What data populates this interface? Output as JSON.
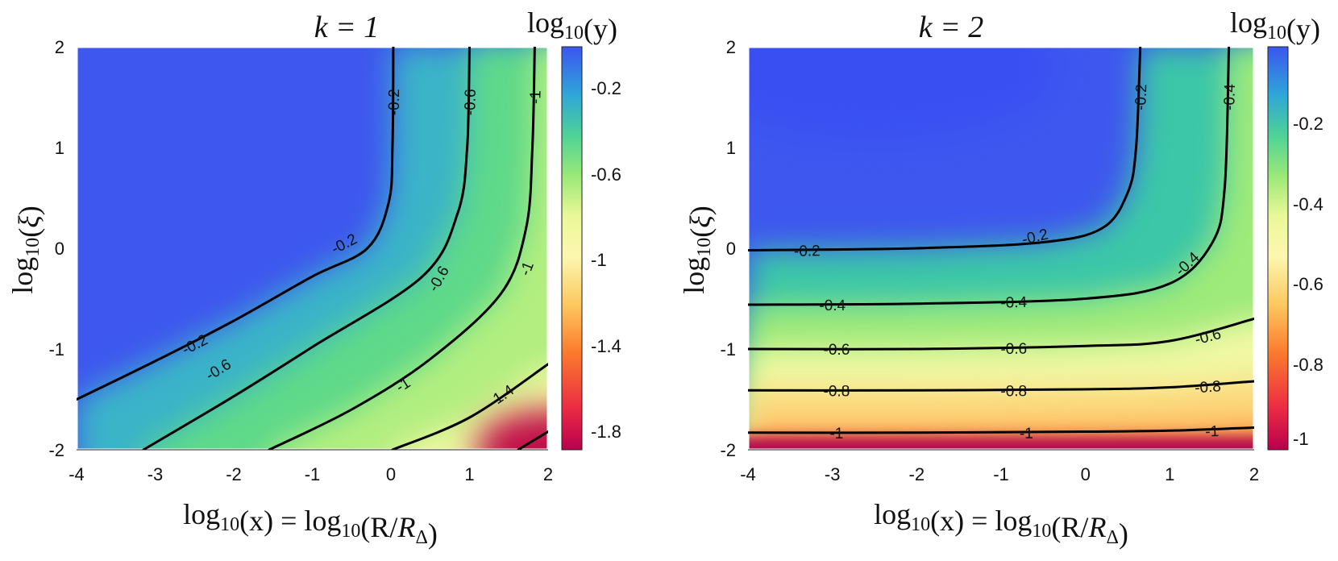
{
  "chart_data": [
    {
      "type": "heatmap",
      "title": "k = 1",
      "xlabel": "log10(x) = log10(R/RΔ)",
      "ylabel": "log10(ξ)",
      "colorbar_title": "log10(y)",
      "xlim": [
        -4,
        2
      ],
      "ylim": [
        -2,
        2
      ],
      "x_ticks": [
        "-4",
        "-3",
        "-2",
        "-1",
        "0",
        "1",
        "2"
      ],
      "y_ticks": [
        "-2",
        "-1",
        "0",
        "1",
        "2"
      ],
      "color_range": [
        -1.9,
        -0.05
      ],
      "colorbar_ticks": [
        "-0.2",
        "-0.6",
        "-1",
        "-1.4",
        "-1.8"
      ],
      "contours": [
        {
          "level": -0.2,
          "label": "-0.2",
          "points": [
            [
              -4,
              -1.5
            ],
            [
              -3,
              -1.12
            ],
            [
              -2,
              -0.72
            ],
            [
              -1,
              -0.28
            ],
            [
              -0.3,
              0.0
            ],
            [
              -0.03,
              0.45
            ],
            [
              0.02,
              1.0
            ],
            [
              0.03,
              2.0
            ]
          ],
          "label_at": [
            [
              -0.6,
              0.05
            ],
            [
              -2.5,
              -0.95
            ],
            [
              0.03,
              1.45
            ]
          ]
        },
        {
          "level": -0.6,
          "label": "-0.6",
          "points": [
            [
              -3.15,
              -2.0
            ],
            [
              -2,
              -1.47
            ],
            [
              -1,
              -0.98
            ],
            [
              0.4,
              -0.28
            ],
            [
              0.85,
              0.35
            ],
            [
              0.97,
              1.0
            ],
            [
              1.0,
              2.0
            ]
          ],
          "label_at": [
            [
              -2.2,
              -1.2
            ],
            [
              0.6,
              -0.3
            ],
            [
              1.0,
              1.45
            ]
          ]
        },
        {
          "level": -1,
          "label": "-1",
          "points": [
            [
              -1.55,
              -2.0
            ],
            [
              -0.5,
              -1.6
            ],
            [
              0.5,
              -1.1
            ],
            [
              1.4,
              -0.45
            ],
            [
              1.72,
              0.2
            ],
            [
              1.8,
              1.0
            ],
            [
              1.83,
              2.0
            ]
          ],
          "label_at": [
            [
              0.15,
              -1.35
            ],
            [
              1.72,
              -0.2
            ],
            [
              1.83,
              1.5
            ]
          ]
        },
        {
          "level": -1.4,
          "label": "-1.4",
          "points": [
            [
              0.02,
              -2.0
            ],
            [
              1.0,
              -1.68
            ],
            [
              2.0,
              -1.15
            ]
          ],
          "label_at": [
            [
              1.4,
              -1.46
            ]
          ]
        },
        {
          "level": -1.8,
          "label": "",
          "points": [
            [
              1.62,
              -2.0
            ],
            [
              2.0,
              -1.82
            ]
          ],
          "label_at": []
        }
      ]
    },
    {
      "type": "heatmap",
      "title": "k = 2",
      "xlabel": "log10(x) = log10(R/RΔ)",
      "ylabel": "log10(ξ)",
      "colorbar_title": "log10(y)",
      "xlim": [
        -4,
        2
      ],
      "ylim": [
        -2,
        2
      ],
      "x_ticks": [
        "-4",
        "-3",
        "-2",
        "-1",
        "0",
        "1",
        "2"
      ],
      "y_ticks": [
        "-2",
        "-1",
        "0",
        "1",
        "2"
      ],
      "color_range": [
        -1.08,
        -0.02
      ],
      "colorbar_ticks": [
        "-0.2",
        "-0.4",
        "-0.6",
        "-0.8",
        "-1"
      ],
      "contours": [
        {
          "level": -0.2,
          "label": "-0.2",
          "points": [
            [
              -4,
              -0.02
            ],
            [
              -2,
              0.0
            ],
            [
              -0.5,
              0.06
            ],
            [
              0.2,
              0.2
            ],
            [
              0.5,
              0.55
            ],
            [
              0.6,
              1.0
            ],
            [
              0.65,
              2.0
            ]
          ],
          "label_at": [
            [
              -3.3,
              -0.02
            ],
            [
              -0.6,
              0.12
            ],
            [
              0.65,
              1.5
            ]
          ]
        },
        {
          "level": -0.4,
          "label": "-0.4",
          "points": [
            [
              -4,
              -0.56
            ],
            [
              -2,
              -0.55
            ],
            [
              0,
              -0.5
            ],
            [
              1.0,
              -0.35
            ],
            [
              1.5,
              0.05
            ],
            [
              1.65,
              0.6
            ],
            [
              1.7,
              2.0
            ]
          ],
          "label_at": [
            [
              -3.0,
              -0.56
            ],
            [
              -0.85,
              -0.53
            ],
            [
              1.2,
              -0.15
            ],
            [
              1.7,
              1.5
            ]
          ]
        },
        {
          "level": -0.6,
          "label": "-0.6",
          "points": [
            [
              -4,
              -1.0
            ],
            [
              -2,
              -1.0
            ],
            [
              0,
              -0.97
            ],
            [
              1.0,
              -0.92
            ],
            [
              2.0,
              -0.7
            ]
          ],
          "label_at": [
            [
              -2.95,
              -1.0
            ],
            [
              -0.85,
              -0.99
            ],
            [
              1.45,
              -0.87
            ]
          ]
        },
        {
          "level": -0.8,
          "label": "-0.8",
          "points": [
            [
              -4,
              -1.41
            ],
            [
              -2,
              -1.41
            ],
            [
              0,
              -1.4
            ],
            [
              1.0,
              -1.38
            ],
            [
              2.0,
              -1.32
            ]
          ],
          "label_at": [
            [
              -2.95,
              -1.41
            ],
            [
              -0.85,
              -1.41
            ],
            [
              1.45,
              -1.37
            ]
          ]
        },
        {
          "level": -1,
          "label": "-1",
          "points": [
            [
              -4,
              -1.83
            ],
            [
              -2,
              -1.83
            ],
            [
              0,
              -1.82
            ],
            [
              1.0,
              -1.81
            ],
            [
              2.0,
              -1.78
            ]
          ],
          "label_at": [
            [
              -2.95,
              -1.83
            ],
            [
              -0.7,
              -1.83
            ],
            [
              1.5,
              -1.81
            ]
          ]
        }
      ]
    }
  ]
}
